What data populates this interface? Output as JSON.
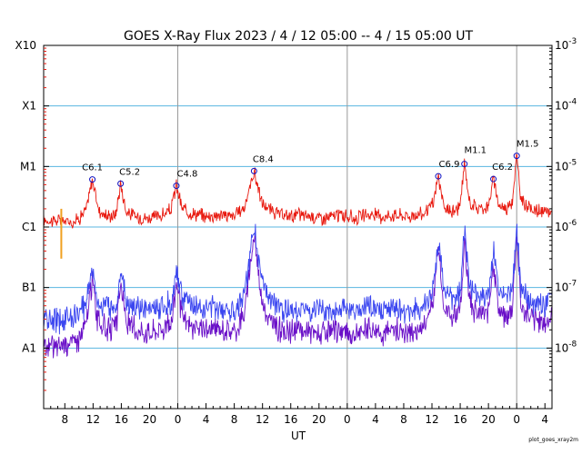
{
  "chart_data": {
    "type": "line",
    "title": "GOES X-Ray Flux   2023  /  4  /  12    05:00 --  4  /  15    05:00    UT",
    "xlabel": "UT",
    "credit": "plot_goes_xray2m",
    "y_scale": "log",
    "ylim": [
      "1e-9",
      "1e-3"
    ],
    "left_class_labels": [
      "X10",
      "X1",
      "M1",
      "C1",
      "B1",
      "A1"
    ],
    "right_tick_labels": [
      {
        "base": "10",
        "exp": "-3"
      },
      {
        "base": "10",
        "exp": "-4"
      },
      {
        "base": "10",
        "exp": "-5"
      },
      {
        "base": "10",
        "exp": "-6"
      },
      {
        "base": "10",
        "exp": "-7"
      },
      {
        "base": "10",
        "exp": "-8"
      }
    ],
    "x_tick_labels": [
      "8",
      "12",
      "16",
      "20",
      "0",
      "4",
      "8",
      "12",
      "16",
      "20",
      "0",
      "4",
      "8",
      "12",
      "16",
      "20",
      "0",
      "4"
    ],
    "x_tick_hours": [
      8,
      12,
      16,
      20,
      24,
      28,
      32,
      36,
      40,
      44,
      48,
      52,
      56,
      60,
      64,
      68,
      72,
      76
    ],
    "day_boundaries_hours": [
      24,
      48,
      72
    ],
    "x_range_hours": [
      5,
      77
    ],
    "flares": [
      {
        "label": "C6.1",
        "hour": 11.9,
        "flux": 6.1e-06
      },
      {
        "label": "C5.2",
        "hour": 15.9,
        "flux": 5.2e-06
      },
      {
        "label": "C4.8",
        "hour": 23.8,
        "flux": 4.8e-06
      },
      {
        "label": "C8.4",
        "hour": 34.8,
        "flux": 8.4e-06
      },
      {
        "label": "C6.9",
        "hour": 60.9,
        "flux": 6.9e-06
      },
      {
        "label": "M1.1",
        "hour": 64.6,
        "flux": 1.1e-05
      },
      {
        "label": "C6.2",
        "hour": 68.7,
        "flux": 6.2e-06
      },
      {
        "label": "M1.5",
        "hour": 72.0,
        "flux": 1.5e-05
      }
    ],
    "series": [
      {
        "color": "#e8190f",
        "band": "long",
        "x": [
          5,
          8,
          9,
          10,
          11,
          11.9,
          12.8,
          14,
          15.2,
          15.9,
          16.7,
          18,
          20,
          22,
          23,
          23.8,
          24.6,
          26,
          28,
          30,
          32,
          33.5,
          34.8,
          35.9,
          37,
          39,
          41,
          43,
          45,
          47,
          49,
          51,
          53,
          55,
          57,
          59,
          60.2,
          60.9,
          61.7,
          63,
          64,
          64.6,
          65.3,
          66.5,
          68,
          68.7,
          69.4,
          70.5,
          71.4,
          72,
          72.6,
          74,
          76,
          77
        ],
        "y": [
          1.3e-06,
          1.25e-06,
          1.2e-06,
          1.4e-06,
          1.9e-06,
          6.1e-06,
          1.9e-06,
          1.5e-06,
          1.6e-06,
          5.2e-06,
          1.8e-06,
          1.5e-06,
          1.4e-06,
          1.6e-06,
          1.9e-06,
          4.8e-06,
          2e-06,
          1.7e-06,
          1.5e-06,
          1.6e-06,
          1.5e-06,
          2.2e-06,
          8.4e-06,
          2.5e-06,
          1.9e-06,
          1.5e-06,
          1.6e-06,
          1.5e-06,
          1.4e-06,
          1.6e-06,
          1.4e-06,
          1.6e-06,
          1.5e-06,
          1.6e-06,
          1.5e-06,
          1.7e-06,
          2.5e-06,
          6.9e-06,
          2e-06,
          1.8e-06,
          2.2e-06,
          1.1e-05,
          2.6e-06,
          2e-06,
          2.2e-06,
          6.2e-06,
          2.4e-06,
          2e-06,
          2.8e-06,
          1.5e-05,
          2.8e-06,
          2e-06,
          1.7e-06,
          1.8e-06
        ]
      },
      {
        "color": "#3b46f0",
        "band": "short",
        "x": [
          5,
          7,
          8,
          10,
          11,
          11.9,
          12.6,
          14,
          15.3,
          15.9,
          16.7,
          18,
          20,
          22,
          23.2,
          23.8,
          24.6,
          26,
          28,
          30,
          32,
          33.5,
          34.8,
          35.9,
          37,
          39,
          41,
          43,
          45,
          47,
          49,
          51,
          53,
          55,
          57,
          59,
          60.2,
          60.9,
          61.7,
          63,
          64,
          64.6,
          65.3,
          66.5,
          68,
          68.7,
          69.4,
          70.5,
          71.4,
          72,
          72.6,
          74,
          76,
          77
        ],
        "y": [
          3e-08,
          2.8e-08,
          3.2e-08,
          3.5e-08,
          6e-08,
          2.2e-07,
          6e-08,
          4.5e-08,
          5e-08,
          2e-07,
          6e-08,
          4.5e-08,
          4.2e-08,
          5e-08,
          6e-08,
          2e-07,
          7e-08,
          5e-08,
          4.5e-08,
          4.8e-08,
          4.2e-08,
          8e-08,
          1.1e-06,
          1.2e-07,
          6e-08,
          4e-08,
          4.6e-08,
          4e-08,
          3.8e-08,
          4.5e-08,
          3.6e-08,
          4.8e-08,
          4e-08,
          4.4e-08,
          4e-08,
          5e-08,
          1e-07,
          6e-07,
          9e-08,
          6e-08,
          8e-08,
          9e-07,
          1.1e-07,
          7e-08,
          8e-08,
          4e-07,
          1e-07,
          6e-08,
          1e-07,
          1.1e-06,
          9e-08,
          6e-08,
          5e-08,
          7e-08
        ]
      },
      {
        "color": "#6a10c8",
        "band": "short",
        "x": [
          5,
          7,
          8,
          10,
          11,
          11.9,
          12.6,
          14,
          15.3,
          15.9,
          16.7,
          18,
          20,
          22,
          23.2,
          23.8,
          24.6,
          26,
          28,
          30,
          32,
          33.5,
          34.8,
          35.9,
          37,
          39,
          41,
          43,
          45,
          47,
          49,
          51,
          53,
          55,
          57,
          59,
          60.2,
          60.9,
          61.7,
          63,
          64,
          64.6,
          65.3,
          66.5,
          68,
          68.7,
          69.4,
          70.5,
          71.4,
          72,
          72.6,
          74,
          76,
          77
        ],
        "y": [
          1e-08,
          1.1e-08,
          1.2e-08,
          1.4e-08,
          2.5e-08,
          1.4e-07,
          3e-08,
          2e-08,
          2.2e-08,
          1.3e-07,
          2.6e-08,
          2e-08,
          1.9e-08,
          2.2e-08,
          2.8e-08,
          1.4e-07,
          3e-08,
          2.2e-08,
          2e-08,
          2.1e-08,
          1.8e-08,
          4e-08,
          8e-07,
          6e-08,
          2.8e-08,
          1.8e-08,
          2e-08,
          1.8e-08,
          1.7e-08,
          2e-08,
          1.6e-08,
          2.1e-08,
          1.8e-08,
          2e-08,
          1.8e-08,
          2.4e-08,
          6e-08,
          4.5e-07,
          5e-08,
          3e-08,
          4e-08,
          6e-07,
          6e-08,
          3.5e-08,
          4e-08,
          2.8e-07,
          5e-08,
          3e-08,
          5e-08,
          8e-07,
          5e-08,
          3e-08,
          2.6e-08,
          3.5e-08
        ]
      }
    ],
    "grid": "horizontal at each decade, vertical at day boundaries"
  }
}
